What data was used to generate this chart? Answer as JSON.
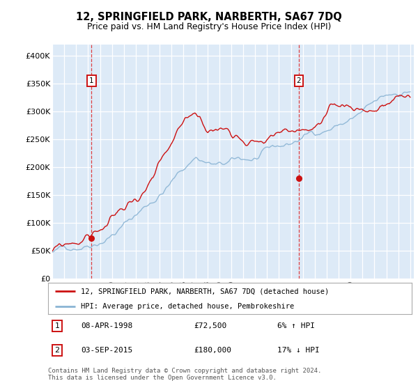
{
  "title": "12, SPRINGFIELD PARK, NARBERTH, SA67 7DQ",
  "subtitle": "Price paid vs. HM Land Registry's House Price Index (HPI)",
  "ylabel_ticks": [
    "£0",
    "£50K",
    "£100K",
    "£150K",
    "£200K",
    "£250K",
    "£300K",
    "£350K",
    "£400K"
  ],
  "ytick_values": [
    0,
    50000,
    100000,
    150000,
    200000,
    250000,
    300000,
    350000,
    400000
  ],
  "ylim": [
    0,
    420000
  ],
  "x_start_year": 1995,
  "x_end_year": 2025,
  "sale1_year": 1998.29,
  "sale1_price": 72500,
  "sale1_label": "6% ↑ HPI",
  "sale1_date": "08-APR-1998",
  "sale2_year": 2015.67,
  "sale2_price": 180000,
  "sale2_label": "17% ↓ HPI",
  "sale2_date": "03-SEP-2015",
  "legend_label1": "12, SPRINGFIELD PARK, NARBERTH, SA67 7DQ (detached house)",
  "legend_label2": "HPI: Average price, detached house, Pembrokeshire",
  "footnote": "Contains HM Land Registry data © Crown copyright and database right 2024.\nThis data is licensed under the Open Government Licence v3.0.",
  "hpi_color": "#8ab4d4",
  "price_color": "#cc1111",
  "marker_color": "#cc1111",
  "bg_color": "#ddeaf7",
  "grid_color": "#ffffff",
  "vline_color": "#dd2222",
  "box_edge_color": "#cc1111"
}
